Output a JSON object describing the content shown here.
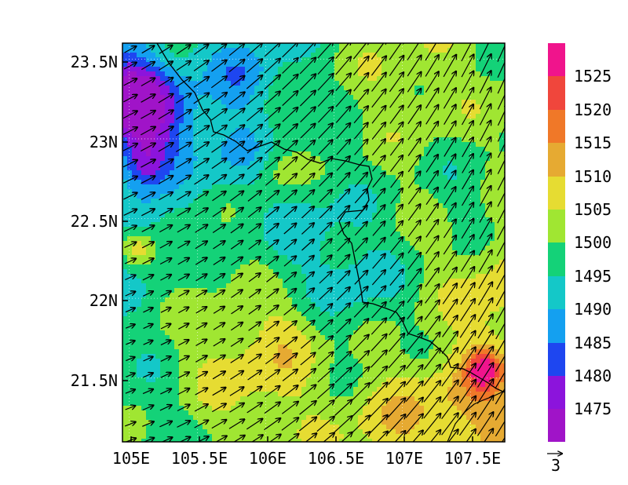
{
  "map": {
    "lon_ticks": [
      "105E",
      "105.5E",
      "106E",
      "106.5E",
      "107E",
      "107.5E"
    ],
    "lat_ticks": [
      "23.5N",
      "23N",
      "22.5N",
      "22N",
      "21.5N"
    ],
    "lon_range": [
      104.95,
      107.75
    ],
    "lat_range": [
      21.1,
      23.6
    ],
    "wind_vector_reference": "3",
    "vector_color": "#000000",
    "border_color": "#000000"
  },
  "colorbar": {
    "labels": [
      "1525",
      "1520",
      "1515",
      "1510",
      "1505",
      "1500",
      "1495",
      "1490",
      "1485",
      "1480",
      "1475"
    ],
    "colors": [
      "#f0148c",
      "#f0463c",
      "#f07828",
      "#e6aa32",
      "#e6dc32",
      "#a0e632",
      "#14d278",
      "#14c8c8",
      "#14a0f0",
      "#1e46f0",
      "#8c14dc",
      "#a014c8"
    ]
  },
  "chart_data": {
    "type": "heatmap",
    "title": "",
    "xlabel": "",
    "ylabel": "",
    "x_ticks": [
      "105E",
      "105.5E",
      "106E",
      "106.5E",
      "107E",
      "107.5E"
    ],
    "y_ticks": [
      "23.5N",
      "23N",
      "22.5N",
      "22N",
      "21.5N"
    ],
    "xlim": [
      104.95,
      107.75
    ],
    "ylim": [
      21.1,
      23.6
    ],
    "value_range": [
      1470,
      1530
    ],
    "contour_levels": [
      1475,
      1480,
      1485,
      1490,
      1495,
      1500,
      1505,
      1510,
      1515,
      1520,
      1525
    ],
    "overlay": "wind vectors",
    "vector_reference_length": "3",
    "dominant_wind": "south-westerly"
  }
}
